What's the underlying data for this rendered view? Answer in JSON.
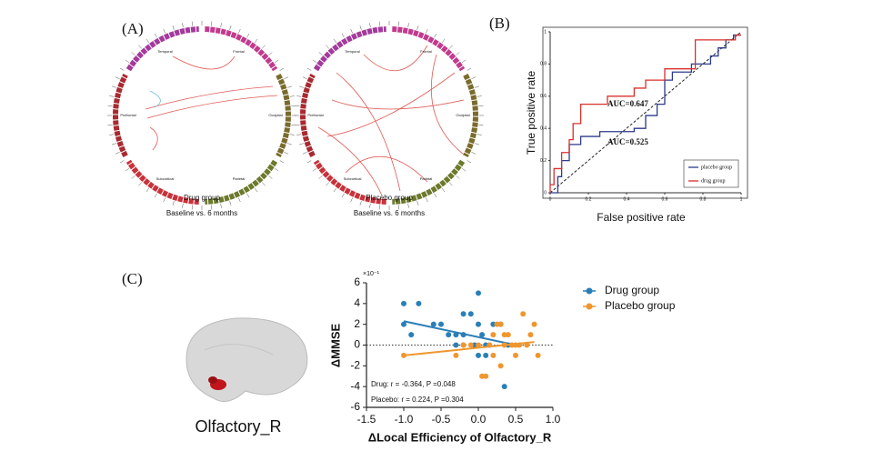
{
  "panel_labels": [
    "(A)",
    "(B)",
    "(C)"
  ],
  "diagram": {
    "circles": [
      {
        "title": "Drug group",
        "subtitle": "Baseline vs. 6 months",
        "regions": [
          "Temporal",
          "Frontal",
          "Occipital",
          "Parietal",
          "Subcortical",
          "Prefrontal"
        ]
      },
      {
        "title": "Placebo  group",
        "subtitle": "Baseline vs. 6 months",
        "regions": [
          "Temporal",
          "Frontal",
          "Occipital",
          "Parietal",
          "Subcortical",
          "Prefrontal"
        ]
      }
    ]
  },
  "brain": {
    "label": "Olfactory_R"
  },
  "chart_data": [
    {
      "type": "line",
      "xlabel": "False positive rate",
      "ylabel": "True positive rate",
      "xlim": [
        0,
        1
      ],
      "ylim": [
        0,
        1
      ],
      "xticks": [
        0,
        0.2,
        0.4,
        0.6,
        0.8,
        1
      ],
      "yticks": [
        0,
        0.2,
        0.4,
        0.6,
        0.8,
        1
      ],
      "legend": "lower right",
      "annotations": [
        "AUC=0.647",
        "AUC=0.525"
      ],
      "series": [
        {
          "name": "placebo group",
          "color": "#2d3a8c",
          "x": [
            0,
            0.04,
            0.04,
            0.06,
            0.06,
            0.1,
            0.1,
            0.16,
            0.16,
            0.26,
            0.26,
            0.44,
            0.44,
            0.5,
            0.5,
            0.56,
            0.56,
            0.6,
            0.6,
            0.64,
            0.64,
            0.74,
            0.74,
            0.84,
            0.84,
            0.88,
            0.88,
            0.92,
            0.92,
            0.96,
            0.96,
            1
          ],
          "values": [
            0,
            0,
            0.1,
            0.1,
            0.2,
            0.2,
            0.3,
            0.3,
            0.35,
            0.35,
            0.38,
            0.38,
            0.4,
            0.4,
            0.48,
            0.48,
            0.55,
            0.55,
            0.7,
            0.7,
            0.75,
            0.75,
            0.8,
            0.8,
            0.85,
            0.85,
            0.9,
            0.9,
            0.95,
            0.95,
            0.98,
            0.98
          ]
        },
        {
          "name": "drug group",
          "color": "#d9302c",
          "x": [
            0,
            0,
            0.02,
            0.02,
            0.06,
            0.06,
            0.1,
            0.1,
            0.12,
            0.12,
            0.16,
            0.16,
            0.3,
            0.3,
            0.44,
            0.44,
            0.5,
            0.5,
            0.6,
            0.6,
            0.76,
            0.76,
            0.97,
            0.97,
            1
          ],
          "values": [
            0,
            0.05,
            0.05,
            0.15,
            0.15,
            0.25,
            0.25,
            0.33,
            0.33,
            0.43,
            0.43,
            0.55,
            0.55,
            0.6,
            0.6,
            0.65,
            0.65,
            0.7,
            0.7,
            0.77,
            0.77,
            0.95,
            0.95,
            0.98,
            0.98
          ]
        }
      ]
    },
    {
      "type": "scatter",
      "xlabel": "ΔLocal Efficiency of Olfactory_R",
      "ylabel": "ΔMMSE",
      "yunit": "×10⁻¹",
      "xlim": [
        -1.5,
        1
      ],
      "ylim": [
        -6,
        6
      ],
      "xticks": [
        -1.5,
        {
          "value": -1,
          "label": "-1.0"
        },
        -0.5,
        {
          "value": 0,
          "label": "0.0"
        },
        0.5,
        {
          "value": 1,
          "label": "1.0"
        }
      ],
      "yticks": [
        -6,
        -4,
        -2,
        0,
        2,
        4,
        6
      ],
      "legend": "upper right",
      "annotations": [
        "Drug: r = -0.364, P =0.048",
        "Placebo:  r = 0.224, P =0.304"
      ],
      "series": [
        {
          "name": "Drug group",
          "color": "#2a7fb8",
          "x": [
            -1,
            -0.8,
            -1,
            -0.9,
            -0.6,
            -0.5,
            -0.4,
            -0.3,
            -0.2,
            -0.1,
            0,
            0,
            0.05,
            -0.3,
            -0.2,
            0.1,
            0.2,
            0.3,
            0.35,
            0.4,
            -0.2,
            0.15,
            -0.05,
            0.1,
            0
          ],
          "values": [
            4,
            4,
            2,
            1,
            2,
            2,
            1,
            1,
            1,
            3,
            5,
            2,
            1,
            0,
            0,
            0,
            2,
            2,
            -4,
            0,
            3,
            0,
            0,
            -1,
            -1
          ],
          "fit": {
            "x": [
              -1,
              0.5
            ],
            "values": [
              2.3,
              0
            ]
          }
        },
        {
          "name": "Placebo group",
          "color": "#f0962e",
          "x": [
            -1,
            -0.3,
            -0.2,
            -0.1,
            0,
            0.05,
            0.1,
            0.15,
            0.2,
            0.25,
            0.3,
            0.35,
            0.4,
            0.45,
            0.5,
            0.55,
            0.6,
            0.7,
            0.75,
            0.8,
            0.3,
            0.5,
            0.2,
            0.35,
            0.65
          ],
          "values": [
            -1,
            -1,
            0,
            0,
            0,
            -3,
            -3,
            0,
            -1,
            2,
            2,
            0,
            1,
            0,
            -1,
            0,
            3,
            1,
            2,
            -1,
            -2,
            0,
            1,
            1,
            0
          ],
          "fit": {
            "x": [
              -1,
              0.75
            ],
            "values": [
              -1,
              0.3
            ]
          }
        }
      ]
    }
  ]
}
